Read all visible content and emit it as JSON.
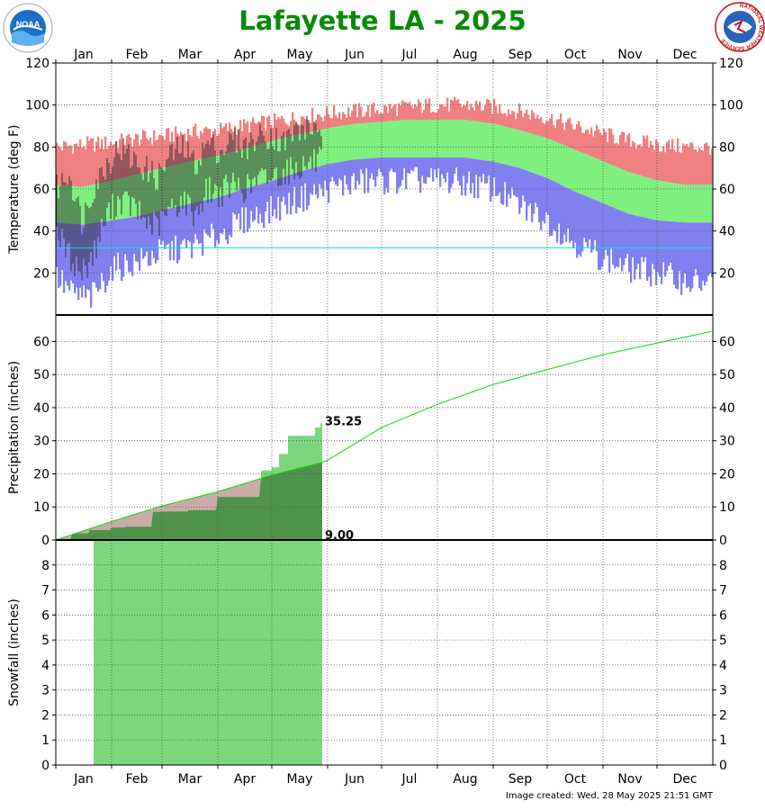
{
  "title": "Lafayette LA - 2025",
  "title_color": "#088a08",
  "footer": "Image created: Wed, 28 May 2025 21:51 GMT",
  "logos": {
    "left": "NOAA",
    "right_ring": "NATIONAL WEATHER SERVICE"
  },
  "months": [
    "Jan",
    "Feb",
    "Mar",
    "Apr",
    "May",
    "Jun",
    "Jul",
    "Aug",
    "Sep",
    "Oct",
    "Nov",
    "Dec"
  ],
  "month_start_days": [
    1,
    32,
    60,
    91,
    121,
    152,
    182,
    213,
    244,
    274,
    305,
    335
  ],
  "colors": {
    "record_high": "#f08080",
    "normal_range": "#80f080",
    "record_low": "#8080f0",
    "observed": "#303030",
    "freezing_line": "#00e0e0",
    "precip_observed": "#7ed67e",
    "precip_normal_area": "#b89089",
    "precip_normal_line": "#00dd00",
    "snow_observed": "#7ed67e"
  },
  "chart_data": [
    {
      "type": "bar",
      "name": "temperature",
      "ylabel": "Temperature (deg F)",
      "ylim": [
        0,
        120
      ],
      "yticks": [
        20,
        40,
        60,
        80,
        100,
        120
      ],
      "x_unit": "day of year",
      "xlim": [
        1,
        365
      ],
      "observed_through_day": 148,
      "series": [
        {
          "name": "record_high",
          "x": [
            1,
            15,
            32,
            46,
            60,
            75,
            91,
            105,
            121,
            135,
            152,
            166,
            182,
            196,
            213,
            227,
            244,
            258,
            274,
            288,
            305,
            319,
            335,
            350,
            365
          ],
          "values": [
            80,
            81,
            82,
            84,
            85,
            87,
            88,
            90,
            92,
            94,
            96,
            97,
            98,
            99,
            100,
            100,
            99,
            97,
            94,
            90,
            86,
            83,
            81,
            80,
            80
          ]
        },
        {
          "name": "normal_high",
          "x": [
            1,
            15,
            32,
            46,
            60,
            75,
            91,
            105,
            121,
            135,
            152,
            166,
            182,
            196,
            213,
            227,
            244,
            258,
            274,
            288,
            305,
            319,
            335,
            350,
            365
          ],
          "values": [
            62,
            61,
            64,
            67,
            70,
            73,
            76,
            79,
            83,
            86,
            89,
            91,
            92,
            93,
            93,
            93,
            91,
            88,
            84,
            79,
            73,
            68,
            64,
            62,
            62
          ]
        },
        {
          "name": "normal_low",
          "x": [
            1,
            15,
            32,
            46,
            60,
            75,
            91,
            105,
            121,
            135,
            152,
            166,
            182,
            196,
            213,
            227,
            244,
            258,
            274,
            288,
            305,
            319,
            335,
            350,
            365
          ],
          "values": [
            44,
            43,
            45,
            47,
            50,
            53,
            56,
            60,
            64,
            68,
            72,
            74,
            75,
            75,
            75,
            75,
            73,
            70,
            65,
            59,
            53,
            48,
            45,
            44,
            44
          ]
        },
        {
          "name": "record_low",
          "x": [
            1,
            10,
            20,
            32,
            45,
            60,
            75,
            91,
            105,
            121,
            135,
            152,
            166,
            182,
            196,
            213,
            227,
            244,
            258,
            274,
            288,
            305,
            319,
            335,
            350,
            365
          ],
          "values": [
            18,
            10,
            8,
            22,
            25,
            30,
            32,
            38,
            45,
            50,
            55,
            60,
            63,
            64,
            64,
            64,
            63,
            60,
            52,
            45,
            35,
            27,
            22,
            20,
            16,
            15
          ]
        },
        {
          "name": "observed_high",
          "x": [
            1,
            8,
            15,
            22,
            29,
            36,
            43,
            50,
            57,
            64,
            71,
            78,
            85,
            92,
            99,
            106,
            113,
            120,
            127,
            134,
            141,
            148
          ],
          "values": [
            60,
            68,
            45,
            62,
            72,
            80,
            74,
            70,
            65,
            76,
            80,
            72,
            82,
            78,
            84,
            80,
            85,
            86,
            82,
            88,
            89,
            90
          ]
        },
        {
          "name": "observed_low",
          "x": [
            1,
            8,
            15,
            22,
            29,
            36,
            43,
            50,
            57,
            64,
            71,
            78,
            85,
            92,
            99,
            106,
            113,
            120,
            127,
            134,
            141,
            148
          ],
          "values": [
            40,
            28,
            20,
            30,
            48,
            55,
            52,
            45,
            42,
            50,
            55,
            48,
            60,
            58,
            62,
            60,
            64,
            66,
            68,
            70,
            72,
            74
          ]
        }
      ],
      "freezing_level": 32
    },
    {
      "type": "area",
      "name": "precipitation",
      "ylabel": "Precipitation (inches)",
      "ylim": [
        0,
        68
      ],
      "yticks": [
        0,
        10,
        20,
        30,
        40,
        50,
        60
      ],
      "series": [
        {
          "name": "observed_cumulative",
          "x": [
            1,
            10,
            20,
            32,
            40,
            55,
            60,
            75,
            91,
            100,
            115,
            121,
            125,
            130,
            135,
            140,
            145,
            148
          ],
          "values": [
            0,
            2,
            3,
            3.8,
            4,
            8.5,
            8.6,
            9,
            13,
            13,
            21,
            22,
            26,
            31.5,
            31.5,
            31.5,
            34,
            35.25
          ]
        },
        {
          "name": "normal_cumulative",
          "x": [
            1,
            32,
            60,
            91,
            121,
            148,
            152,
            182,
            213,
            244,
            274,
            305,
            335,
            365
          ],
          "values": [
            0,
            5.6,
            10.3,
            14.6,
            19.6,
            23.3,
            24.1,
            34,
            41,
            47,
            51.5,
            56,
            59.5,
            63
          ]
        }
      ],
      "labels": [
        "35.25",
        "9.00"
      ]
    },
    {
      "type": "area",
      "name": "snowfall",
      "ylabel": "Snowfall (inches)",
      "ylim": [
        0,
        9
      ],
      "yticks": [
        0,
        1,
        2,
        3,
        4,
        5,
        6,
        7,
        8
      ],
      "series": [
        {
          "name": "observed_cumulative",
          "x": [
            1,
            21,
            22,
            148
          ],
          "values": [
            0,
            0,
            9,
            9
          ]
        }
      ]
    }
  ]
}
